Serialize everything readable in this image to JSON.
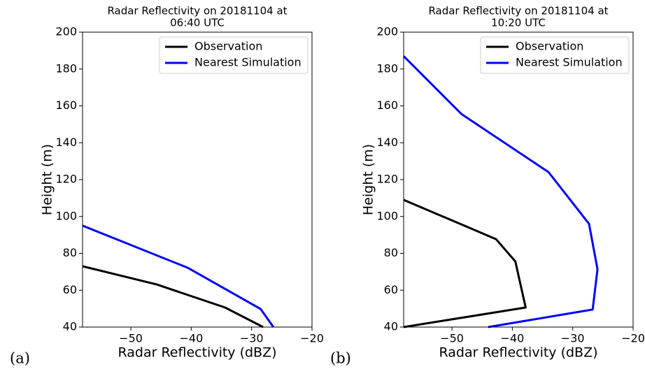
{
  "chart_data": [
    {
      "type": "line",
      "title": [
        "Radar Reflectivity on 20181104 at",
        "06:40 UTC"
      ],
      "panel_label": "(a)",
      "xlabel": "Radar Reflectivity (dBZ)",
      "ylabel": "Height (m)",
      "xlim": [
        -58,
        -20
      ],
      "ylim": [
        40,
        200
      ],
      "xticks": [
        {
          "value": -50,
          "label": "−50"
        },
        {
          "value": -40,
          "label": "−40"
        },
        {
          "value": -30,
          "label": "−30"
        },
        {
          "value": -20,
          "label": "−20"
        }
      ],
      "yticks": [
        40,
        60,
        80,
        100,
        120,
        140,
        160,
        180,
        200
      ],
      "legend": "upper right",
      "series": [
        {
          "name": "Observation",
          "color": "#000000",
          "x": [
            -58,
            -45.7,
            -34.4,
            -28.1
          ],
          "values": [
            73,
            63.1,
            50.6,
            40
          ]
        },
        {
          "name": "Nearest Simulation",
          "color": "#0000ff",
          "x": [
            -58,
            -40.6,
            -28.5,
            -26.4
          ],
          "values": [
            95,
            72.2,
            49.8,
            40
          ]
        }
      ]
    },
    {
      "type": "line",
      "title": [
        "Radar Reflectivity on 20181104 at",
        "10:20 UTC"
      ],
      "panel_label": "(b)",
      "xlabel": "Radar Reflectivity (dBZ)",
      "ylabel": "Height (m)",
      "xlim": [
        -58,
        -20
      ],
      "ylim": [
        40,
        200
      ],
      "xticks": [
        {
          "value": -50,
          "label": "−50"
        },
        {
          "value": -40,
          "label": "−40"
        },
        {
          "value": -30,
          "label": "−30"
        },
        {
          "value": -20,
          "label": "−20"
        }
      ],
      "yticks": [
        40,
        60,
        80,
        100,
        120,
        140,
        160,
        180,
        200
      ],
      "legend": "upper right",
      "series": [
        {
          "name": "Observation",
          "color": "#000000",
          "x": [
            -58,
            -42.7,
            -39.5,
            -37.8,
            -58
          ],
          "values": [
            109,
            87.7,
            75.6,
            50.6,
            40
          ]
        },
        {
          "name": "Nearest Simulation",
          "color": "#0000ff",
          "x": [
            -58,
            -48.4,
            -34,
            -27.3,
            -25.9,
            -26.7,
            -44
          ],
          "values": [
            187,
            155.5,
            124,
            96,
            71.4,
            49.5,
            40
          ]
        }
      ]
    }
  ]
}
